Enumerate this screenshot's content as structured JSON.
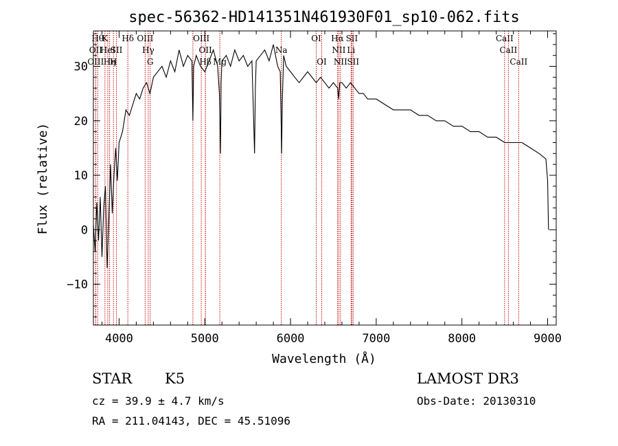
{
  "chart_data": {
    "type": "line",
    "title": "spec-56362-HD141351N461930F01_sp10-062.fits",
    "xlabel": "Wavelength (Å)",
    "ylabel": "Flux (relative)",
    "xlim": [
      3700,
      9100
    ],
    "ylim": [
      -17.5,
      36.5
    ],
    "xticks": [
      4000,
      5000,
      6000,
      7000,
      8000,
      9000
    ],
    "yticks": [
      -10,
      0,
      10,
      20,
      30
    ],
    "series": [
      {
        "name": "flux",
        "x": [
          3700,
          3720,
          3740,
          3760,
          3780,
          3800,
          3820,
          3840,
          3860,
          3880,
          3900,
          3920,
          3940,
          3960,
          3980,
          4000,
          4040,
          4080,
          4120,
          4160,
          4200,
          4240,
          4280,
          4320,
          4360,
          4400,
          4450,
          4500,
          4550,
          4600,
          4650,
          4700,
          4750,
          4800,
          4850,
          4861,
          4870,
          4900,
          4950,
          5000,
          5050,
          5100,
          5150,
          5170,
          5183,
          5190,
          5200,
          5250,
          5300,
          5350,
          5400,
          5450,
          5500,
          5550,
          5570,
          5580,
          5590,
          5600,
          5650,
          5700,
          5750,
          5800,
          5850,
          5880,
          5890,
          5896,
          5905,
          5920,
          5950,
          6000,
          6050,
          6100,
          6150,
          6200,
          6250,
          6300,
          6350,
          6400,
          6450,
          6500,
          6550,
          6563,
          6575,
          6600,
          6650,
          6700,
          6750,
          6800,
          6850,
          6900,
          6950,
          7000,
          7100,
          7200,
          7300,
          7400,
          7500,
          7600,
          7700,
          7800,
          7900,
          8000,
          8100,
          8200,
          8300,
          8400,
          8500,
          8600,
          8700,
          8800,
          8900,
          8980,
          9000,
          9010
        ],
        "values": [
          1,
          -4,
          5,
          -2,
          6,
          -5,
          4,
          8,
          -7,
          2,
          12,
          3,
          10,
          15,
          9,
          16,
          18,
          22,
          21,
          23,
          25,
          24,
          26,
          27,
          25,
          28,
          29,
          30,
          28,
          31,
          29,
          33,
          30,
          32,
          31,
          20,
          30,
          32,
          30,
          29,
          31,
          33,
          30,
          25,
          14,
          27,
          31,
          32,
          30,
          33,
          31,
          32,
          30,
          31,
          20,
          14,
          26,
          31,
          32,
          33,
          31,
          34,
          30,
          29,
          21,
          14,
          24,
          32,
          30,
          29,
          28,
          27,
          28,
          29,
          28,
          27,
          28,
          27,
          26,
          27,
          26,
          24,
          27,
          27,
          26,
          27,
          26,
          25,
          25,
          24,
          24,
          24,
          23,
          22,
          22,
          22,
          21,
          21,
          20,
          20,
          19,
          19,
          18,
          18,
          17,
          17,
          16,
          16,
          16,
          15,
          14,
          13,
          9,
          0
        ]
      }
    ],
    "lines": [
      {
        "wl": 3750,
        "label": "Hθ",
        "row": 1
      },
      {
        "wl": 3727,
        "label": "OII",
        "row": 2
      },
      {
        "wl": 3727,
        "label": "OIII",
        "row": 3
      },
      {
        "wl": 3835,
        "label": "K",
        "row": 1
      },
      {
        "wl": 3868,
        "label": "HeI",
        "row": 2
      },
      {
        "wl": 3889,
        "label": "Hη",
        "row": 3
      },
      {
        "wl": 3934,
        "label": "H",
        "row": 3
      },
      {
        "wl": 3969,
        "label": "SII",
        "row": 2
      },
      {
        "wl": 4102,
        "label": "Hδ",
        "row": 1
      },
      {
        "wl": 4304,
        "label": "OIII",
        "row": 1
      },
      {
        "wl": 4340,
        "label": "Hγ",
        "row": 2
      },
      {
        "wl": 4363,
        "label": "G",
        "row": 3
      },
      {
        "wl": 4861,
        "label": "",
        "row": 0
      },
      {
        "wl": 4959,
        "label": "OIII",
        "row": 1
      },
      {
        "wl": 5007,
        "label": "OII",
        "row": 2
      },
      {
        "wl": 5007,
        "label": "Hβ",
        "row": 3
      },
      {
        "wl": 5175,
        "label": "Mg",
        "row": 3
      },
      {
        "wl": 5893,
        "label": "Na",
        "row": 2
      },
      {
        "wl": 6300,
        "label": "OI",
        "row": 1
      },
      {
        "wl": 6364,
        "label": "OI",
        "row": 3
      },
      {
        "wl": 6548,
        "label": "Hα",
        "row": 1
      },
      {
        "wl": 6563,
        "label": "NII",
        "row": 2
      },
      {
        "wl": 6583,
        "label": "NII",
        "row": 3
      },
      {
        "wl": 6707,
        "label": "Li",
        "row": 2
      },
      {
        "wl": 6716,
        "label": "SII",
        "row": 1
      },
      {
        "wl": 6731,
        "label": "SII",
        "row": 3
      },
      {
        "wl": 8498,
        "label": "CaII",
        "row": 1
      },
      {
        "wl": 8542,
        "label": "CaII",
        "row": 2
      },
      {
        "wl": 8662,
        "label": "CaII",
        "row": 3
      }
    ]
  },
  "info": {
    "obj_class": "STAR",
    "subclass": "K5",
    "survey": "LAMOST DR3",
    "cz": "cz = 39.9 ± 4.7 km/s",
    "obs_date": "Obs-Date: 20130310",
    "coords": "RA = 211.04143, DEC =  45.51096"
  },
  "colors": {
    "line_marker": "#c00000",
    "spectrum": "#000000"
  }
}
